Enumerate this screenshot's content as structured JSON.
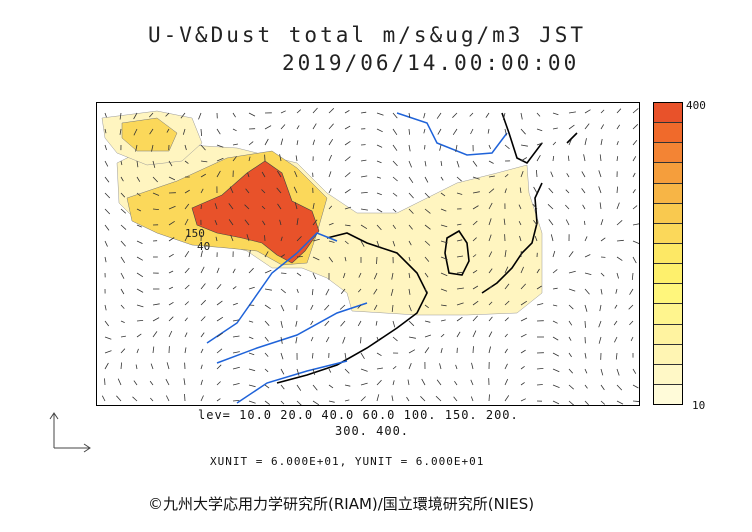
{
  "header": {
    "title": "U-V&Dust total m/s&ug/m3 JST",
    "datetime": "2019/06/14.00:00:00"
  },
  "colorbar": {
    "max_label": "400",
    "min_label": "10",
    "colors": [
      "#e8522a",
      "#f06a2b",
      "#f38434",
      "#f59e3c",
      "#f7b546",
      "#f9c94f",
      "#fbd85a",
      "#fde865",
      "#fef06c",
      "#fff67c",
      "#fff58e",
      "#fff3a0",
      "#fff5b3",
      "#fff8c6",
      "#fffbd9"
    ]
  },
  "map_labels": {
    "label_150": "150",
    "label_40": "40"
  },
  "footer": {
    "levels_line1": "lev= 10.0 20.0 40.0 60.0 100. 150. 200.",
    "levels_line2": "300. 400.",
    "units": "XUNIT = 6.000E+01, YUNIT = 6.000E+01",
    "copyright": "©九州大学応用力学研究所(RIAM)/国立環境研究所(NIES)"
  },
  "colors": {
    "high": "#e8522a",
    "mid": "#fbd85a",
    "low": "#fff5c0",
    "rivers": "#1f63d9",
    "coast": "#000000"
  }
}
